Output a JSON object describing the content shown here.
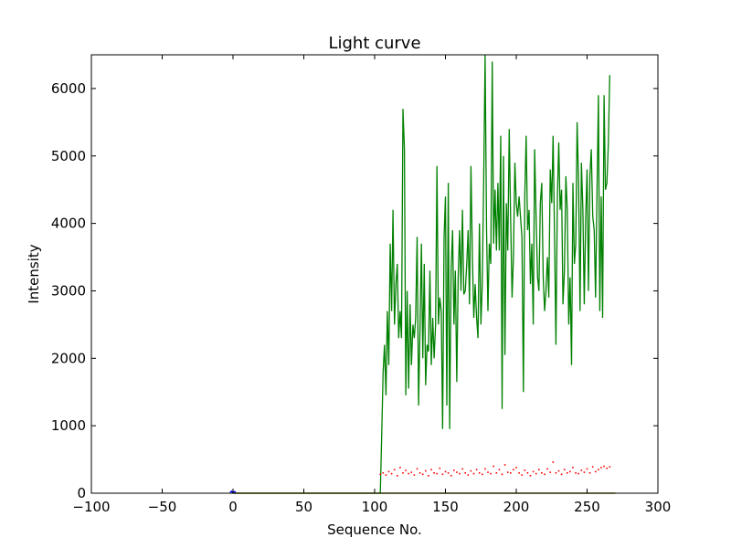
{
  "chart_data": {
    "type": "line",
    "title": "Light curve",
    "xlabel": "Sequence No.",
    "ylabel": "Intensity",
    "xlim": [
      -100,
      300
    ],
    "ylim": [
      0,
      6500
    ],
    "xticks": [
      -100,
      -50,
      0,
      50,
      100,
      150,
      200,
      250,
      300
    ],
    "xtick_labels": [
      "−100",
      "−50",
      "0",
      "50",
      "100",
      "150",
      "200",
      "250",
      "300"
    ],
    "yticks": [
      0,
      1000,
      2000,
      3000,
      4000,
      5000,
      6000
    ],
    "ytick_labels": [
      "0",
      "1000",
      "2000",
      "3000",
      "4000",
      "5000",
      "6000"
    ],
    "grid": false,
    "colors": {
      "green_series": "#008000",
      "red_series": "#ff0000",
      "blue_series": "#0000ff",
      "baseline": "#808000"
    },
    "series": [
      {
        "style": "line",
        "color": "#008000",
        "x": [
          0,
          104,
          105,
          106,
          107,
          108,
          109,
          110,
          111,
          112,
          113,
          114,
          115,
          116,
          117,
          118,
          119,
          120,
          121,
          122,
          123,
          124,
          125,
          126,
          127,
          128,
          129,
          130,
          131,
          132,
          133,
          134,
          135,
          136,
          137,
          138,
          139,
          140,
          141,
          142,
          143,
          144,
          145,
          146,
          147,
          148,
          149,
          150,
          151,
          152,
          153,
          154,
          155,
          156,
          157,
          158,
          159,
          160,
          161,
          162,
          163,
          164,
          165,
          166,
          167,
          168,
          169,
          170,
          171,
          172,
          173,
          174,
          175,
          176,
          177,
          178,
          179,
          180,
          181,
          182,
          183,
          184,
          185,
          186,
          187,
          188,
          189,
          190,
          191,
          192,
          193,
          194,
          195,
          196,
          197,
          198,
          199,
          200,
          201,
          202,
          203,
          204,
          205,
          206,
          207,
          208,
          209,
          210,
          211,
          212,
          213,
          214,
          215,
          216,
          217,
          218,
          219,
          220,
          221,
          222,
          223,
          224,
          225,
          226,
          227,
          228,
          229,
          230,
          231,
          232,
          233,
          234,
          235,
          236,
          237,
          238,
          239,
          240,
          241,
          242,
          243,
          244,
          245,
          246,
          247,
          248,
          249,
          250,
          251,
          252,
          253,
          254,
          255,
          256,
          257,
          258,
          259,
          260,
          261,
          262,
          263,
          264,
          265,
          266
        ],
        "y": [
          0,
          0,
          900,
          1800,
          2200,
          1450,
          2700,
          1900,
          3700,
          2700,
          4200,
          2500,
          3100,
          3400,
          2300,
          2700,
          2300,
          5700,
          5100,
          1450,
          3000,
          1550,
          2800,
          1900,
          2500,
          2300,
          2600,
          3800,
          1300,
          2400,
          3700,
          2000,
          3400,
          1600,
          2200,
          2100,
          3300,
          1900,
          2600,
          2000,
          2500,
          4850,
          2500,
          2900,
          2700,
          950,
          3800,
          4400,
          1300,
          4600,
          950,
          3300,
          3900,
          2500,
          3300,
          1650,
          3200,
          3900,
          3000,
          4200,
          2950,
          3000,
          3400,
          3900,
          2800,
          4850,
          3500,
          2600,
          3100,
          2600,
          2300,
          4000,
          2500,
          3100,
          4700,
          6500,
          3900,
          2700,
          3700,
          3400,
          6400,
          3700,
          4500,
          3600,
          4600,
          3600,
          5300,
          1250,
          5000,
          2050,
          4300,
          3600,
          5400,
          4100,
          2900,
          3500,
          4900,
          4300,
          4100,
          4400,
          4100,
          3800,
          1500,
          4400,
          5300,
          3900,
          4200,
          3100,
          3700,
          2500,
          5100,
          4100,
          3200,
          3000,
          4300,
          4600,
          3200,
          2700,
          3000,
          3500,
          2900,
          4800,
          4300,
          5300,
          3800,
          2200,
          4400,
          5200,
          4200,
          4500,
          2800,
          3300,
          4700,
          4200,
          2500,
          3200,
          1900,
          4600,
          3400,
          3700,
          5500,
          4600,
          2700,
          4900,
          4200,
          2800,
          4100,
          4800,
          3000,
          4700,
          5100,
          4100,
          3900,
          2900,
          4500,
          5900,
          2700,
          4400,
          2600,
          5900,
          4500,
          4600,
          5200,
          6200
        ]
      },
      {
        "style": "dots",
        "color": "#ff0000",
        "x": [
          104,
          106,
          108,
          110,
          112,
          114,
          116,
          118,
          120,
          122,
          124,
          126,
          128,
          130,
          132,
          134,
          136,
          138,
          140,
          142,
          144,
          146,
          148,
          150,
          152,
          154,
          156,
          158,
          160,
          162,
          164,
          166,
          168,
          170,
          172,
          174,
          176,
          178,
          180,
          182,
          184,
          186,
          188,
          190,
          192,
          194,
          196,
          198,
          200,
          202,
          204,
          206,
          208,
          210,
          212,
          214,
          216,
          218,
          220,
          222,
          224,
          226,
          228,
          230,
          232,
          234,
          236,
          238,
          240,
          242,
          244,
          246,
          248,
          250,
          252,
          254,
          256,
          258,
          260,
          262,
          264,
          266
        ],
        "y": [
          280,
          300,
          270,
          320,
          290,
          350,
          260,
          380,
          300,
          340,
          290,
          310,
          270,
          360,
          300,
          280,
          330,
          260,
          350,
          300,
          290,
          370,
          280,
          320,
          300,
          260,
          340,
          310,
          290,
          360,
          300,
          270,
          330,
          290,
          350,
          300,
          280,
          360,
          310,
          290,
          400,
          300,
          350,
          280,
          420,
          310,
          300,
          350,
          380,
          300,
          270,
          340,
          300,
          260,
          320,
          290,
          350,
          300,
          280,
          360,
          310,
          460,
          300,
          330,
          280,
          350,
          300,
          320,
          380,
          300,
          290,
          340,
          310,
          360,
          300,
          390,
          320,
          350,
          380,
          400,
          370,
          390
        ]
      },
      {
        "style": "line",
        "color": "#0000ff",
        "x": [
          -2,
          -1,
          0,
          1,
          2
        ],
        "y": [
          10,
          30,
          5,
          25,
          10
        ]
      },
      {
        "style": "line",
        "color": "#808000",
        "x": [
          0,
          270
        ],
        "y": [
          0,
          0
        ]
      }
    ]
  }
}
